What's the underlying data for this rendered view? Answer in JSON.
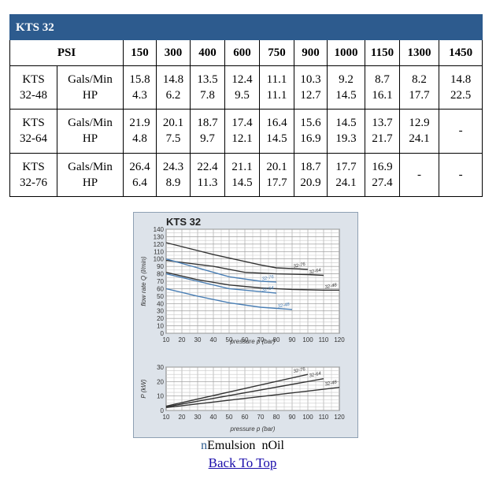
{
  "table": {
    "title": "KTS 32",
    "psi_label": "PSI",
    "psi": [
      "150",
      "300",
      "400",
      "600",
      "750",
      "900",
      "1000",
      "1150",
      "1300",
      "1450"
    ],
    "rows": [
      {
        "model_a": "KTS",
        "model_b": "32-48",
        "unit_a": "Gals/Min",
        "unit_b": "HP",
        "gpm": [
          "15.8",
          "14.8",
          "13.5",
          "12.4",
          "11.1",
          "10.3",
          "9.2",
          "8.7",
          "8.2",
          "14.8"
        ],
        "hp": [
          "4.3",
          "6.2",
          "7.8",
          "9.5",
          "11.1",
          "12.7",
          "14.5",
          "16.1",
          "17.7",
          "22.5"
        ]
      },
      {
        "model_a": "KTS",
        "model_b": "32-64",
        "unit_a": "Gals/Min",
        "unit_b": "HP",
        "gpm": [
          "21.9",
          "20.1",
          "18.7",
          "17.4",
          "16.4",
          "15.6",
          "14.5",
          "13.7",
          "12.9",
          "-"
        ],
        "hp": [
          "4.8",
          "7.5",
          "9.7",
          "12.1",
          "14.5",
          "16.9",
          "19.3",
          "21.7",
          "24.1",
          ""
        ]
      },
      {
        "model_a": "KTS",
        "model_b": "32-76",
        "unit_a": "Gals/Min",
        "unit_b": "HP",
        "gpm": [
          "26.4",
          "24.3",
          "22.4",
          "21.1",
          "20.1",
          "18.7",
          "17.7",
          "16.9",
          "-",
          "-"
        ],
        "hp": [
          "6.4",
          "8.9",
          "11.3",
          "14.5",
          "17.7",
          "20.9",
          "24.1",
          "27.4",
          "",
          ""
        ]
      }
    ]
  },
  "chart_data": [
    {
      "type": "line",
      "title": "KTS 32",
      "xlabel": "pressure p (bar)",
      "ylabel": "flow rate Q (l/min)",
      "xlim": [
        10,
        120
      ],
      "ylim": [
        0,
        140
      ],
      "xticks": [
        10,
        20,
        30,
        40,
        50,
        60,
        70,
        80,
        90,
        100,
        110,
        120
      ],
      "yticks": [
        0,
        10,
        20,
        30,
        40,
        50,
        60,
        70,
        80,
        90,
        100,
        110,
        120,
        130,
        140
      ],
      "series": [
        {
          "name": "32-76",
          "color": "#333333",
          "x": [
            10,
            40,
            70,
            80,
            100
          ],
          "y": [
            122,
            106,
            92,
            88,
            86
          ]
        },
        {
          "name": "32-64",
          "color": "#333333",
          "x": [
            10,
            40,
            60,
            80,
            100,
            110
          ],
          "y": [
            98,
            90,
            82,
            80,
            79,
            78
          ]
        },
        {
          "name": "32-48",
          "color": "#333333",
          "x": [
            10,
            30,
            50,
            70,
            90,
            110,
            120
          ],
          "y": [
            82,
            72,
            65,
            61,
            59,
            58,
            58
          ]
        },
        {
          "name": "32-76",
          "color": "#4a7fb5",
          "x": [
            10,
            30,
            50,
            70,
            80
          ],
          "y": [
            100,
            88,
            76,
            70,
            69
          ]
        },
        {
          "name": "32-64",
          "color": "#4a7fb5",
          "x": [
            10,
            30,
            50,
            70,
            80
          ],
          "y": [
            80,
            70,
            60,
            56,
            54
          ]
        },
        {
          "name": "32-48",
          "color": "#4a7fb5",
          "x": [
            10,
            30,
            50,
            70,
            90
          ],
          "y": [
            60,
            50,
            41,
            35,
            32
          ]
        }
      ]
    },
    {
      "type": "line",
      "title": "",
      "xlabel": "pressure p (bar)",
      "ylabel": "P (kW)",
      "xlim": [
        10,
        120
      ],
      "ylim": [
        0,
        30
      ],
      "xticks": [
        10,
        20,
        30,
        40,
        50,
        60,
        70,
        80,
        90,
        100,
        110,
        120
      ],
      "yticks": [
        0,
        10,
        20,
        30
      ],
      "series": [
        {
          "name": "32-76",
          "color": "#333333",
          "x": [
            10,
            100
          ],
          "y": [
            3,
            25
          ]
        },
        {
          "name": "32-64",
          "color": "#333333",
          "x": [
            10,
            110
          ],
          "y": [
            2.5,
            22
          ]
        },
        {
          "name": "32-48",
          "color": "#333333",
          "x": [
            10,
            120
          ],
          "y": [
            2,
            16
          ]
        }
      ]
    }
  ],
  "legend": {
    "marker_a": "n",
    "label_a": "Emulsion",
    "marker_b": "n",
    "label_b": "Oil"
  },
  "back_link": "Back To Top"
}
